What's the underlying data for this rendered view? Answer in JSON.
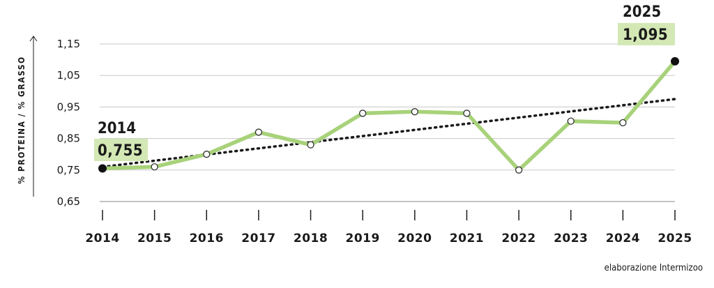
{
  "chart_data": {
    "type": "line",
    "ylabel": "% PROTEINA / % GRASSO",
    "xlabel": "",
    "x": [
      "2014",
      "2015",
      "2016",
      "2017",
      "2018",
      "2019",
      "2020",
      "2021",
      "2022",
      "2023",
      "2024",
      "2025"
    ],
    "series": [
      {
        "values": [
          0.755,
          0.76,
          0.8,
          0.87,
          0.83,
          0.93,
          0.935,
          0.93,
          0.75,
          0.905,
          0.9,
          1.095
        ]
      }
    ],
    "trendline": {
      "style": "dotted",
      "start": 0.76,
      "end": 0.975
    },
    "yticks": [
      "0,65",
      "0,75",
      "0,85",
      "0,95",
      "1,05",
      "1,15"
    ],
    "ylim": [
      0.65,
      1.15
    ],
    "grid": true,
    "annotations": [
      {
        "year": "2014",
        "value": "0,755"
      },
      {
        "year": "2025",
        "value": "1,095"
      }
    ],
    "source": "elaborazione Intermizoo",
    "colors": {
      "line": "#a8d27a",
      "highlight": "#d3e8b5",
      "trend": "#1a1a1a",
      "grid": "#c8c8c8"
    }
  }
}
